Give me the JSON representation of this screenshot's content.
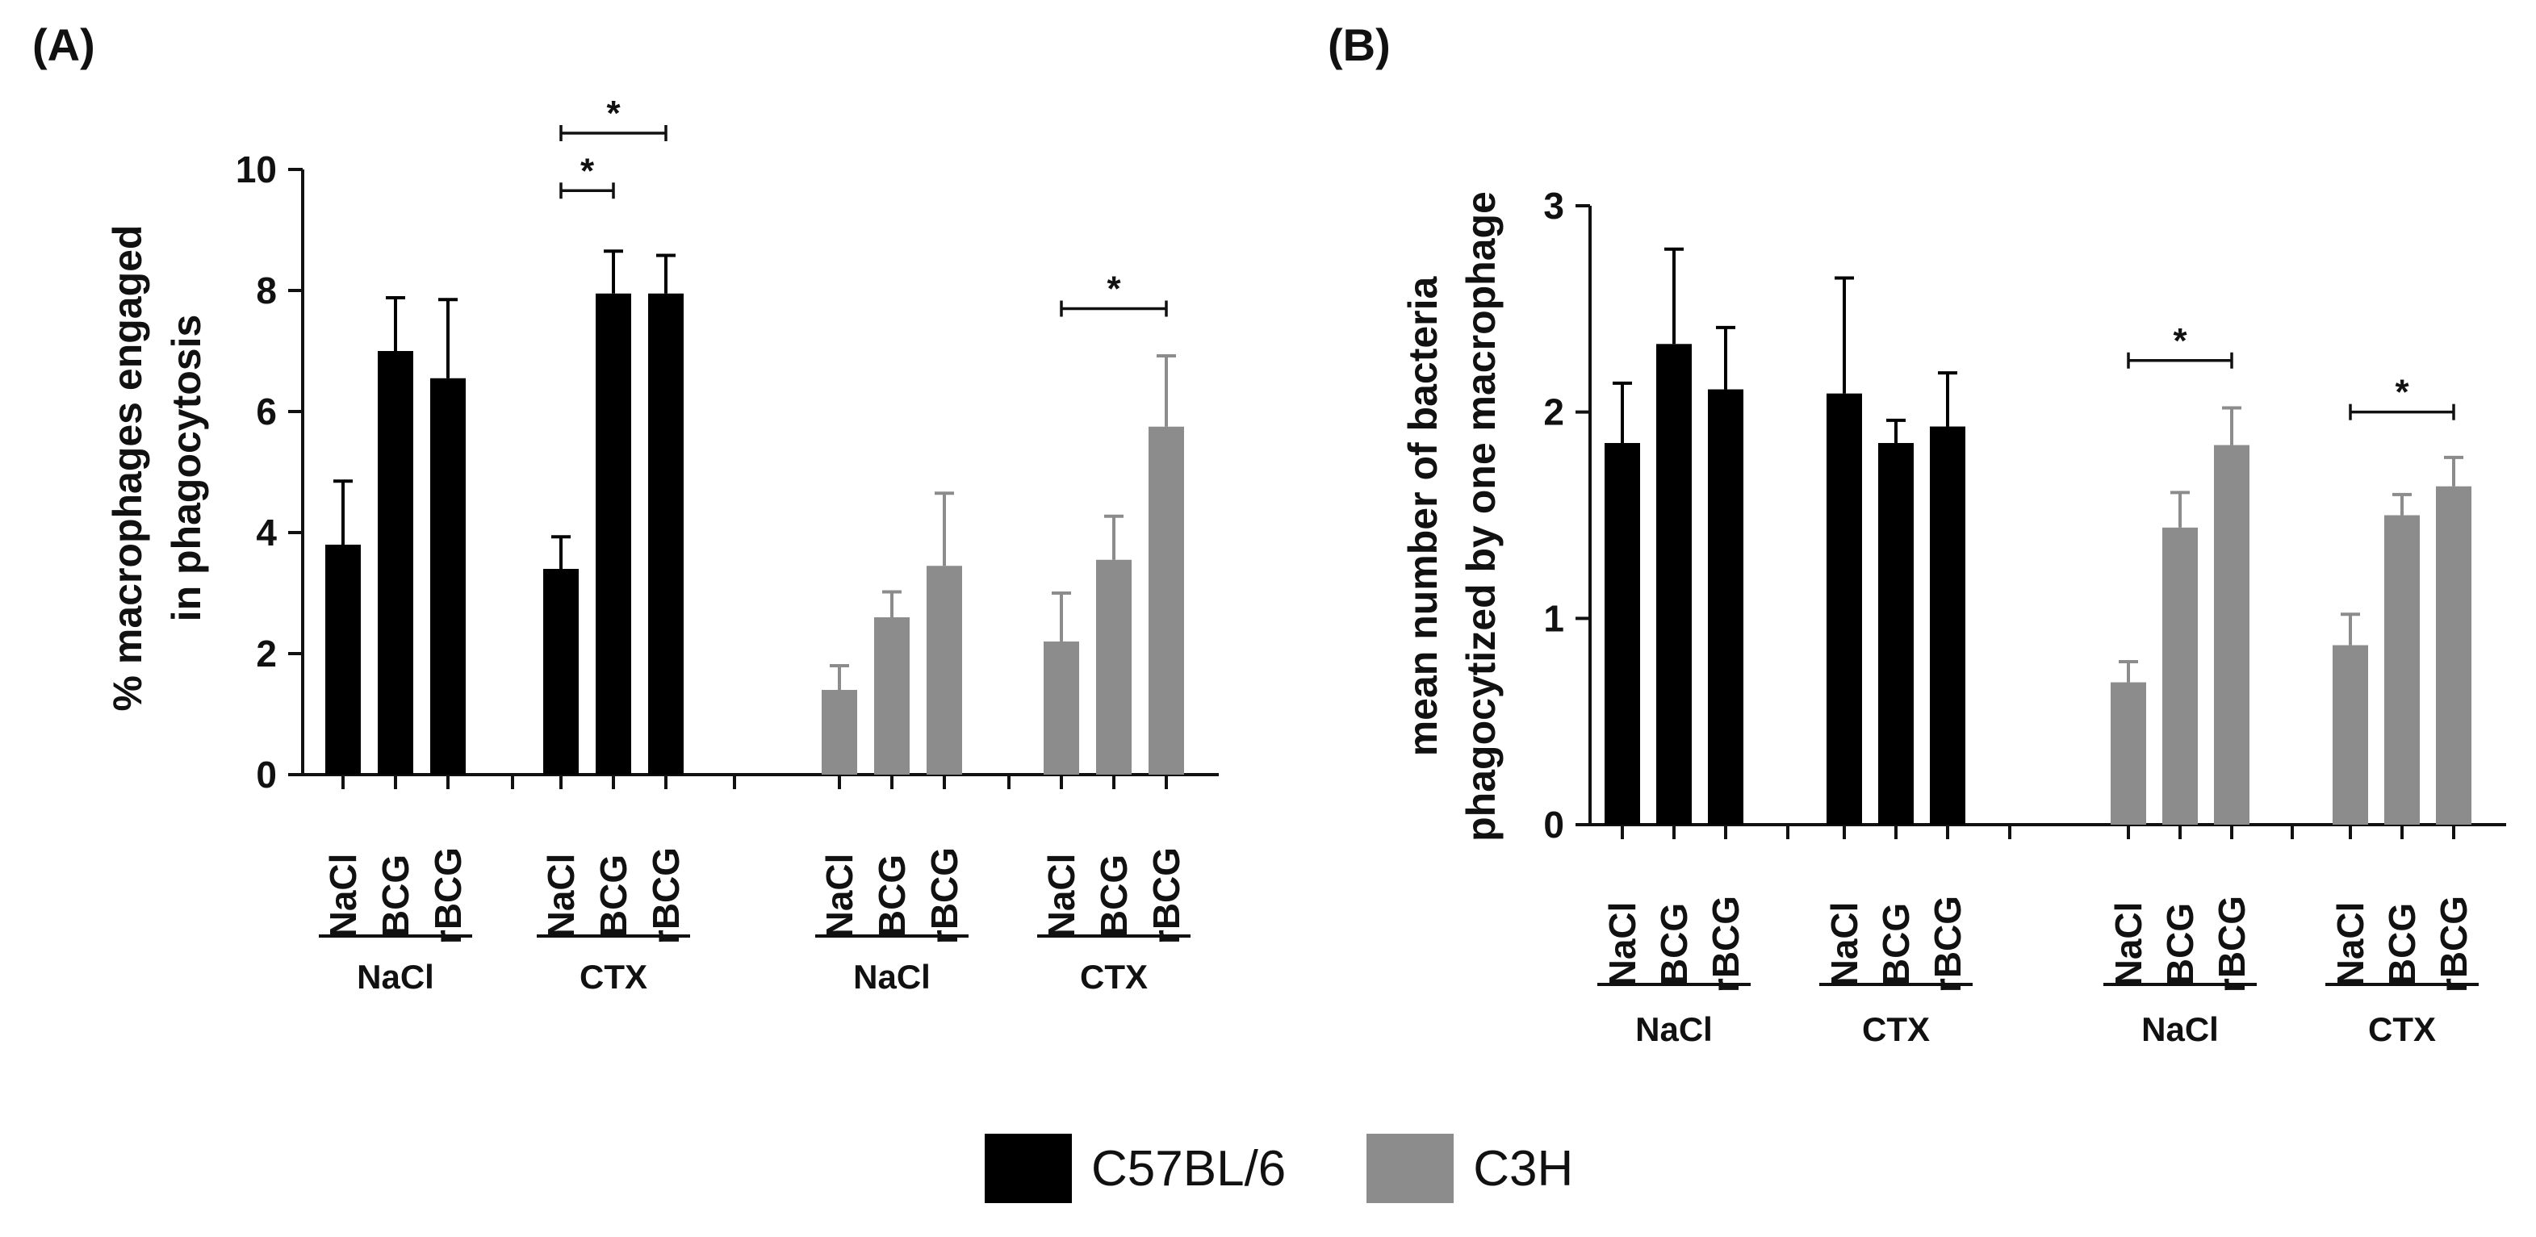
{
  "legend": [
    {
      "label": "C57BL/6",
      "color": "#000000"
    },
    {
      "label": "C3H",
      "color": "#8c8c8c"
    }
  ],
  "chart_data": [
    {
      "panel": "(A)",
      "type": "bar",
      "ylabel_lines": [
        "% macrophages engaged",
        "in phagocytosis"
      ],
      "ylim": [
        0,
        10
      ],
      "yticks": [
        0,
        2,
        4,
        6,
        8,
        10
      ],
      "groups": [
        {
          "label": "NaCl",
          "strain": "C57BL/6",
          "categories": [
            "NaCl",
            "BCG",
            "rBCG"
          ],
          "values": [
            3.8,
            7.0,
            6.55
          ],
          "errors": [
            1.05,
            0.88,
            1.3
          ]
        },
        {
          "label": "CTX",
          "strain": "C57BL/6",
          "categories": [
            "NaCl",
            "BCG",
            "rBCG"
          ],
          "values": [
            3.4,
            7.95,
            7.95
          ],
          "errors": [
            0.53,
            0.7,
            0.63
          ]
        },
        {
          "label": "NaCl",
          "strain": "C3H",
          "categories": [
            "NaCl",
            "BCG",
            "rBCG"
          ],
          "values": [
            1.4,
            2.6,
            3.45
          ],
          "errors": [
            0.4,
            0.42,
            1.2
          ]
        },
        {
          "label": "CTX",
          "strain": "C3H",
          "categories": [
            "NaCl",
            "BCG",
            "rBCG"
          ],
          "values": [
            2.2,
            3.55,
            5.75
          ],
          "errors": [
            0.8,
            0.72,
            1.17
          ]
        }
      ],
      "significance": [
        {
          "group": 1,
          "from": 0,
          "to": 2,
          "y": 10.6,
          "label": "*"
        },
        {
          "group": 1,
          "from": 0,
          "to": 1,
          "y": 9.65,
          "label": "*"
        },
        {
          "group": 3,
          "from": 0,
          "to": 2,
          "y": 7.7,
          "label": "*"
        }
      ]
    },
    {
      "panel": "(B)",
      "type": "bar",
      "ylabel_lines": [
        "mean number of bacteria",
        "phagocytized by one macrophage"
      ],
      "ylim": [
        0,
        3
      ],
      "yticks": [
        0,
        1,
        2,
        3
      ],
      "groups": [
        {
          "label": "NaCl",
          "strain": "C57BL/6",
          "categories": [
            "NaCl",
            "BCG",
            "rBCG"
          ],
          "values": [
            1.85,
            2.33,
            2.11
          ],
          "errors": [
            0.29,
            0.46,
            0.3
          ]
        },
        {
          "label": "CTX",
          "strain": "C57BL/6",
          "categories": [
            "NaCl",
            "BCG",
            "rBCG"
          ],
          "values": [
            2.09,
            1.85,
            1.93
          ],
          "errors": [
            0.56,
            0.11,
            0.26
          ]
        },
        {
          "label": "NaCl",
          "strain": "C3H",
          "categories": [
            "NaCl",
            "BCG",
            "rBCG"
          ],
          "values": [
            0.69,
            1.44,
            1.84
          ],
          "errors": [
            0.1,
            0.17,
            0.18
          ]
        },
        {
          "label": "CTX",
          "strain": "C3H",
          "categories": [
            "NaCl",
            "BCG",
            "rBCG"
          ],
          "values": [
            0.87,
            1.5,
            1.64
          ],
          "errors": [
            0.15,
            0.1,
            0.14
          ]
        }
      ],
      "significance": [
        {
          "group": 2,
          "from": 0,
          "to": 2,
          "y": 2.25,
          "label": "*"
        },
        {
          "group": 3,
          "from": 0,
          "to": 2,
          "y": 2.0,
          "label": "*"
        }
      ]
    }
  ]
}
